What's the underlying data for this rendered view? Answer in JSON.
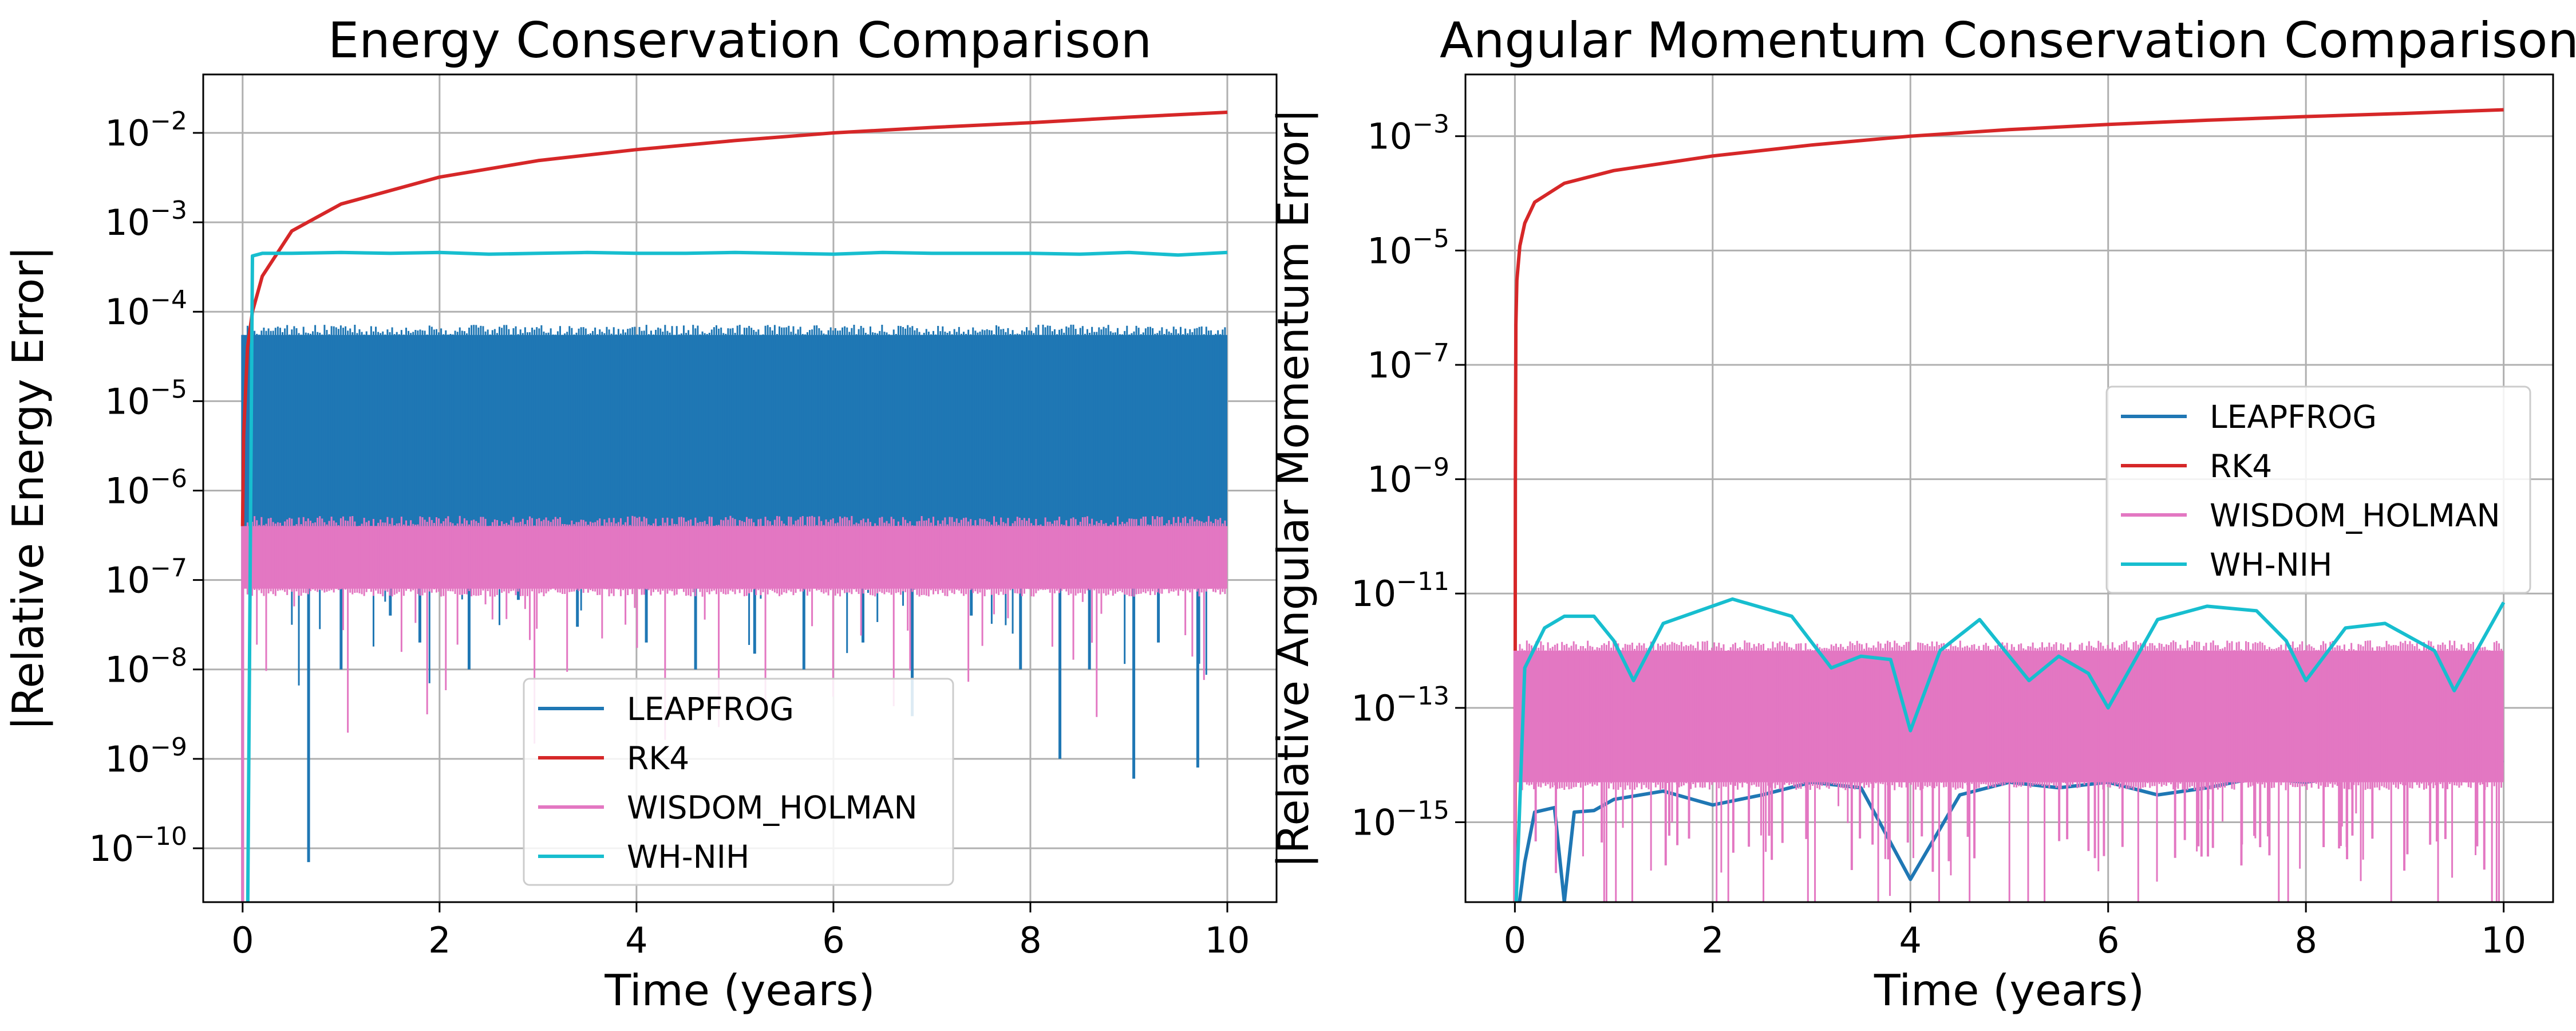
{
  "chart_data": [
    {
      "type": "line",
      "title": "Energy Conservation Comparison",
      "xlabel": "Time (years)",
      "ylabel": "|Relative Energy Error|",
      "yscale": "log",
      "xlim": [
        -0.4,
        10.5
      ],
      "ylim": [
        2.5e-11,
        0.045
      ],
      "grid": true,
      "legend_loc": "lower-center",
      "xticks": [
        "0",
        "2",
        "4",
        "6",
        "8",
        "10"
      ],
      "yticks": [
        {
          "base": "10",
          "exp": "−10",
          "value": 1e-10
        },
        {
          "base": "10",
          "exp": "−9",
          "value": 1e-09
        },
        {
          "base": "10",
          "exp": "−8",
          "value": 1e-08
        },
        {
          "base": "10",
          "exp": "−7",
          "value": 1e-07
        },
        {
          "base": "10",
          "exp": "−6",
          "value": 1e-06
        },
        {
          "base": "10",
          "exp": "−5",
          "value": 1e-05
        },
        {
          "base": "10",
          "exp": "−4",
          "value": 0.0001
        },
        {
          "base": "10",
          "exp": "−3",
          "value": 0.001
        },
        {
          "base": "10",
          "exp": "−2",
          "value": 0.01
        }
      ],
      "series": [
        {
          "name": "LEAPFROG",
          "color": "#1f77b4",
          "kind": "band",
          "band": [
            4e-07,
            5.5e-05
          ],
          "dips_min": 5e-09,
          "x": [
            0.67,
            1.0,
            1.5,
            1.8,
            2.3,
            2.8,
            3.4,
            4.1,
            4.6,
            5.2,
            5.7,
            6.3,
            6.8,
            7.4,
            7.9,
            8.3,
            8.6,
            9.05,
            9.3,
            9.7
          ],
          "y": [
            7e-11,
            1e-08,
            4e-08,
            2e-08,
            1e-08,
            6e-08,
            3e-08,
            2e-08,
            1e-08,
            1.5e-08,
            1e-08,
            2e-08,
            3e-09,
            4e-08,
            1e-08,
            1e-09,
            1e-08,
            6e-10,
            2e-08,
            8e-10
          ]
        },
        {
          "name": "RK4",
          "color": "#d62728",
          "x": [
            0.0,
            0.01,
            0.05,
            0.1,
            0.2,
            0.5,
            1,
            2,
            3,
            4,
            5,
            6,
            7,
            8,
            9,
            10
          ],
          "y": [
            4e-07,
            4e-06,
            4e-05,
            0.0001,
            0.00025,
            0.0008,
            0.0016,
            0.0032,
            0.0049,
            0.0065,
            0.0082,
            0.01,
            0.0115,
            0.013,
            0.015,
            0.017
          ]
        },
        {
          "name": "WISDOM_HOLMAN",
          "color": "#e377c2",
          "kind": "band",
          "band": [
            8e-08,
            4e-07
          ]
        },
        {
          "name": "WH-NIH",
          "color": "#17becf",
          "x": [
            0.0,
            0.05,
            0.1,
            0.2,
            0.5,
            1,
            1.5,
            2,
            2.5,
            3,
            3.5,
            4,
            4.5,
            5,
            5.5,
            6,
            6.5,
            7,
            7.5,
            8,
            8.5,
            9,
            9.5,
            10
          ],
          "y": [
            1e-11,
            1e-11,
            0.00042,
            0.00045,
            0.00045,
            0.00046,
            0.00045,
            0.00046,
            0.00044,
            0.00045,
            0.00046,
            0.00045,
            0.00045,
            0.00046,
            0.00045,
            0.00044,
            0.00046,
            0.00045,
            0.00045,
            0.00045,
            0.00044,
            0.00046,
            0.00043,
            0.00046
          ]
        }
      ]
    },
    {
      "type": "line",
      "title": "Angular Momentum Conservation Comparison",
      "xlabel": "Time (years)",
      "ylabel": "|Relative Angular Momentum Error|",
      "yscale": "log",
      "xlim": [
        -0.5,
        10.5
      ],
      "ylim": [
        4e-17,
        0.012
      ],
      "grid": true,
      "legend_loc": "center-right",
      "xticks": [
        "0",
        "2",
        "4",
        "6",
        "8",
        "10"
      ],
      "yticks": [
        {
          "base": "10",
          "exp": "−15",
          "value": 1e-15
        },
        {
          "base": "10",
          "exp": "−13",
          "value": 1e-13
        },
        {
          "base": "10",
          "exp": "−11",
          "value": 1e-11
        },
        {
          "base": "10",
          "exp": "−9",
          "value": 1e-09
        },
        {
          "base": "10",
          "exp": "−7",
          "value": 1e-07
        },
        {
          "base": "10",
          "exp": "−5",
          "value": 1e-05
        },
        {
          "base": "10",
          "exp": "−3",
          "value": 0.001
        }
      ],
      "series": [
        {
          "name": "LEAPFROG",
          "color": "#1f77b4",
          "x": [
            0.0,
            0.1,
            0.2,
            0.4,
            0.5,
            0.6,
            0.8,
            1,
            1.5,
            2,
            2.5,
            3,
            3.5,
            4,
            4.5,
            5,
            5.5,
            6,
            6.5,
            7,
            7.5,
            8,
            8.5,
            9,
            9.5,
            10
          ],
          "y": [
            1e-17,
            2e-16,
            1.5e-15,
            1.8e-15,
            4e-17,
            1.5e-15,
            1.6e-15,
            2.5e-15,
            3.5e-15,
            2e-15,
            3e-15,
            5e-15,
            4e-15,
            1e-16,
            3e-15,
            5e-15,
            4e-15,
            5e-15,
            3e-15,
            4e-15,
            6e-15,
            5e-15,
            7e-15,
            8e-15,
            1e-14,
            1.2e-14
          ]
        },
        {
          "name": "RK4",
          "color": "#d62728",
          "x": [
            0.0,
            0.005,
            0.01,
            0.02,
            0.05,
            0.1,
            0.2,
            0.5,
            1,
            2,
            3,
            4,
            5,
            6,
            7,
            8,
            9,
            10
          ],
          "y": [
            1e-17,
            1e-09,
            5e-07,
            3e-06,
            1.2e-05,
            3e-05,
            7e-05,
            0.00015,
            0.00025,
            0.00045,
            0.0007,
            0.001,
            0.0013,
            0.0016,
            0.0019,
            0.0022,
            0.0025,
            0.0029
          ]
        },
        {
          "name": "WISDOM_HOLMAN",
          "color": "#e377c2",
          "kind": "band",
          "band": [
            5e-15,
            1e-12
          ]
        },
        {
          "name": "WH-NIH",
          "color": "#17becf",
          "x": [
            0.0,
            0.1,
            0.3,
            0.5,
            0.8,
            1.0,
            1.2,
            1.5,
            2.2,
            2.8,
            3.2,
            3.5,
            3.8,
            4.0,
            4.3,
            4.7,
            5.2,
            5.5,
            5.8,
            6.0,
            6.5,
            7.0,
            7.5,
            7.8,
            8.0,
            8.4,
            8.8,
            9.3,
            9.5,
            10.0
          ],
          "y": [
            1e-17,
            5e-13,
            2.5e-12,
            4e-12,
            4e-12,
            1.5e-12,
            3e-13,
            3e-12,
            8e-12,
            4e-12,
            5e-13,
            8e-13,
            7e-13,
            4e-14,
            1e-12,
            3.5e-12,
            3e-13,
            8e-13,
            4e-13,
            1e-13,
            3.5e-12,
            6e-12,
            5e-12,
            1.5e-12,
            3e-13,
            2.5e-12,
            3e-12,
            1e-12,
            2e-13,
            7e-12
          ]
        }
      ]
    }
  ]
}
